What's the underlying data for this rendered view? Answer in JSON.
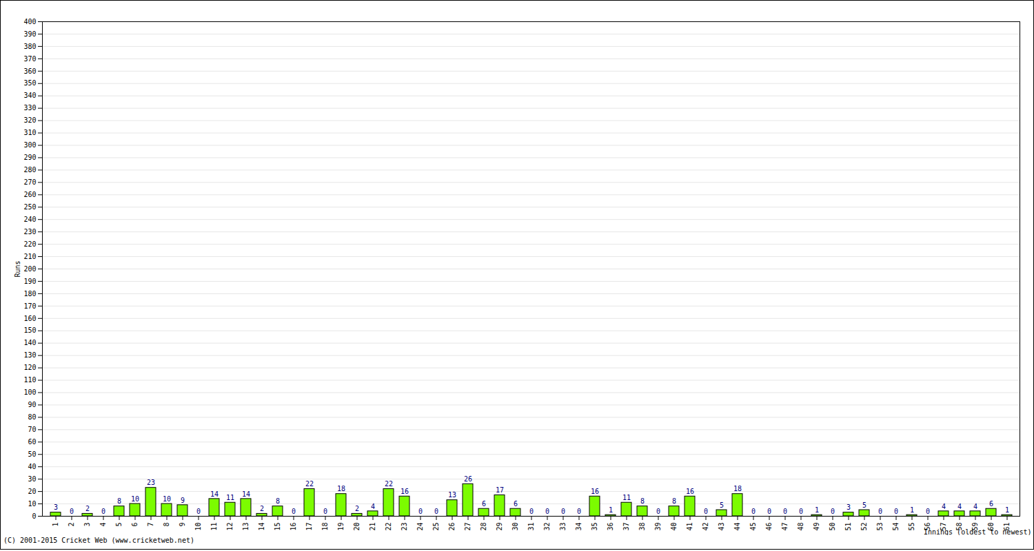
{
  "chart_data": {
    "type": "bar",
    "categories": [
      "1",
      "2",
      "3",
      "4",
      "5",
      "6",
      "7",
      "8",
      "9",
      "10",
      "11",
      "12",
      "13",
      "14",
      "15",
      "16",
      "17",
      "18",
      "19",
      "20",
      "21",
      "22",
      "23",
      "24",
      "25",
      "26",
      "27",
      "28",
      "29",
      "30",
      "31",
      "32",
      "33",
      "34",
      "35",
      "36",
      "37",
      "38",
      "39",
      "40",
      "41",
      "42",
      "43",
      "44",
      "45",
      "46",
      "47",
      "48",
      "49",
      "50",
      "51",
      "52",
      "53",
      "54",
      "55",
      "56",
      "57",
      "58",
      "59",
      "60",
      "61"
    ],
    "values": [
      3,
      0,
      2,
      0,
      8,
      10,
      23,
      10,
      9,
      0,
      14,
      11,
      14,
      2,
      8,
      0,
      22,
      0,
      18,
      2,
      4,
      22,
      16,
      0,
      0,
      13,
      26,
      6,
      17,
      6,
      0,
      0,
      0,
      0,
      16,
      1,
      11,
      8,
      0,
      8,
      16,
      0,
      5,
      18,
      0,
      0,
      0,
      0,
      1,
      0,
      3,
      5,
      0,
      0,
      1,
      0,
      4,
      4,
      4,
      6,
      1
    ],
    "color": "#7cfc00",
    "x_label": "Innings (oldest to newest)",
    "y_label": "Runs",
    "annotations": [
      "(C) 2001-2015 Cricket Web (www.cricketweb.net)"
    ],
    "ylim": [
      0,
      400
    ],
    "yticks": [
      0,
      10,
      20,
      30,
      40,
      50,
      60,
      70,
      80,
      90,
      100,
      110,
      120,
      130,
      140,
      150,
      160,
      170,
      180,
      190,
      200,
      210,
      220,
      230,
      240,
      250,
      260,
      270,
      280,
      290,
      300,
      310,
      320,
      330,
      340,
      350,
      360,
      370,
      380,
      390,
      400
    ],
    "grid": true,
    "data_labels": true
  }
}
